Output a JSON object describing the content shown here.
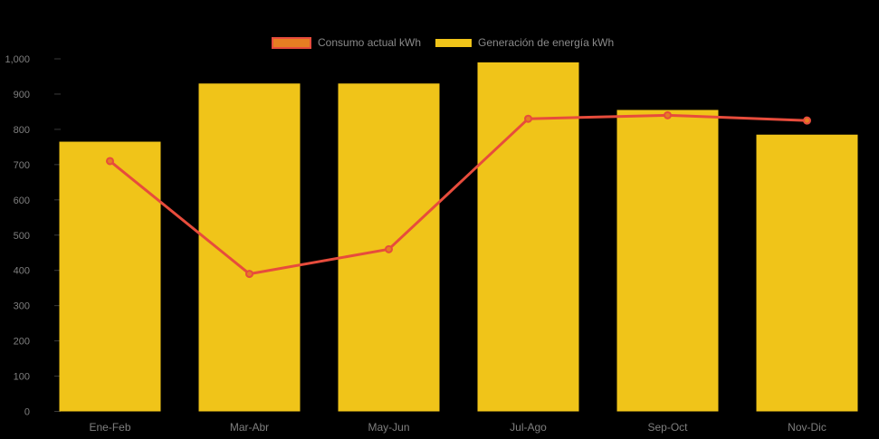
{
  "legend": {
    "items": [
      {
        "label": "Consumo actual kWh",
        "swatch_fill": "#E67E22",
        "swatch_border": "#E74C3C"
      },
      {
        "label": "Generación de energía kWh",
        "swatch_fill": "#F0C419",
        "swatch_border": "#F0C419"
      }
    ]
  },
  "colors": {
    "background": "#000000",
    "bar": "#F0C419",
    "line": "#E74C3C",
    "marker_fill": "#E67E22",
    "marker_stroke": "#E74C3C",
    "axis_text": "#7f7f7f",
    "tick_mark": "#3a3a3a"
  },
  "chart_data": {
    "type": "bar",
    "title": "",
    "xlabel": "",
    "ylabel": "",
    "categories": [
      "Ene-Feb",
      "Mar-Abr",
      "May-Jun",
      "Jul-Ago",
      "Sep-Oct",
      "Nov-Dic"
    ],
    "series": [
      {
        "name": "Generación de energía kWh",
        "type": "bar",
        "color": "#F0C419",
        "values": [
          765,
          930,
          930,
          990,
          855,
          785
        ]
      },
      {
        "name": "Consumo actual kWh",
        "type": "line",
        "color": "#E74C3C",
        "marker_color": "#E67E22",
        "values": [
          710,
          390,
          460,
          830,
          840,
          825
        ]
      }
    ],
    "ylim": [
      0,
      1000
    ],
    "ytick_values": [
      0,
      100,
      200,
      300,
      400,
      500,
      600,
      700,
      800,
      900,
      1000
    ],
    "ytick_labels": [
      "0",
      "100",
      "200",
      "300",
      "400",
      "500",
      "600",
      "700",
      "800",
      "900",
      "1,000"
    ],
    "grid": false,
    "legend_position": "top"
  }
}
